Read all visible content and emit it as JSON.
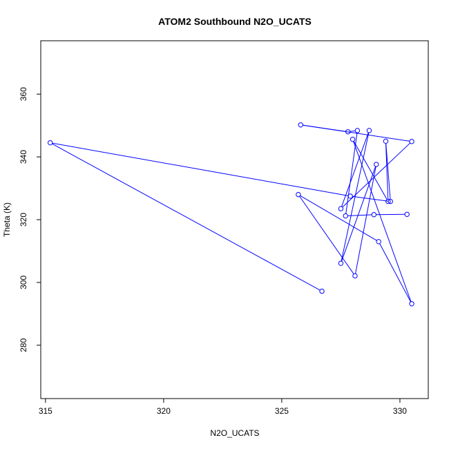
{
  "chart_data": {
    "type": "line",
    "title": "ATOM2 Southbound N2O_UCATS",
    "xlabel": "N2O_UCATS",
    "ylabel": "Theta (K)",
    "xlim": [
      314.8,
      331.2
    ],
    "ylim": [
      263,
      377
    ],
    "xticks": [
      315,
      320,
      325,
      330
    ],
    "yticks": [
      280,
      300,
      320,
      340,
      360
    ],
    "grid": false,
    "line_color": "#0000ff",
    "marker": "open-circle",
    "series": [
      {
        "points": [
          [
            326.7,
            297.2
          ],
          [
            315.2,
            344.5
          ],
          [
            327.9,
            327.5
          ],
          [
            329.6,
            325.8
          ],
          [
            329.4,
            345.0
          ],
          [
            329.5,
            325.8
          ],
          [
            328.0,
            345.6
          ],
          [
            330.5,
            293.2
          ],
          [
            329.1,
            313.0
          ],
          [
            325.7,
            328.0
          ],
          [
            328.1,
            302.1
          ],
          [
            329.0,
            337.6
          ],
          [
            327.5,
            306.1
          ],
          [
            328.7,
            348.4
          ],
          [
            327.5,
            323.5
          ],
          [
            330.5,
            344.9
          ],
          [
            325.8,
            350.2
          ],
          [
            327.8,
            348.0
          ],
          [
            328.2,
            348.4
          ],
          [
            327.7,
            321.2
          ],
          [
            328.9,
            321.6
          ],
          [
            330.3,
            321.7
          ]
        ]
      }
    ]
  }
}
